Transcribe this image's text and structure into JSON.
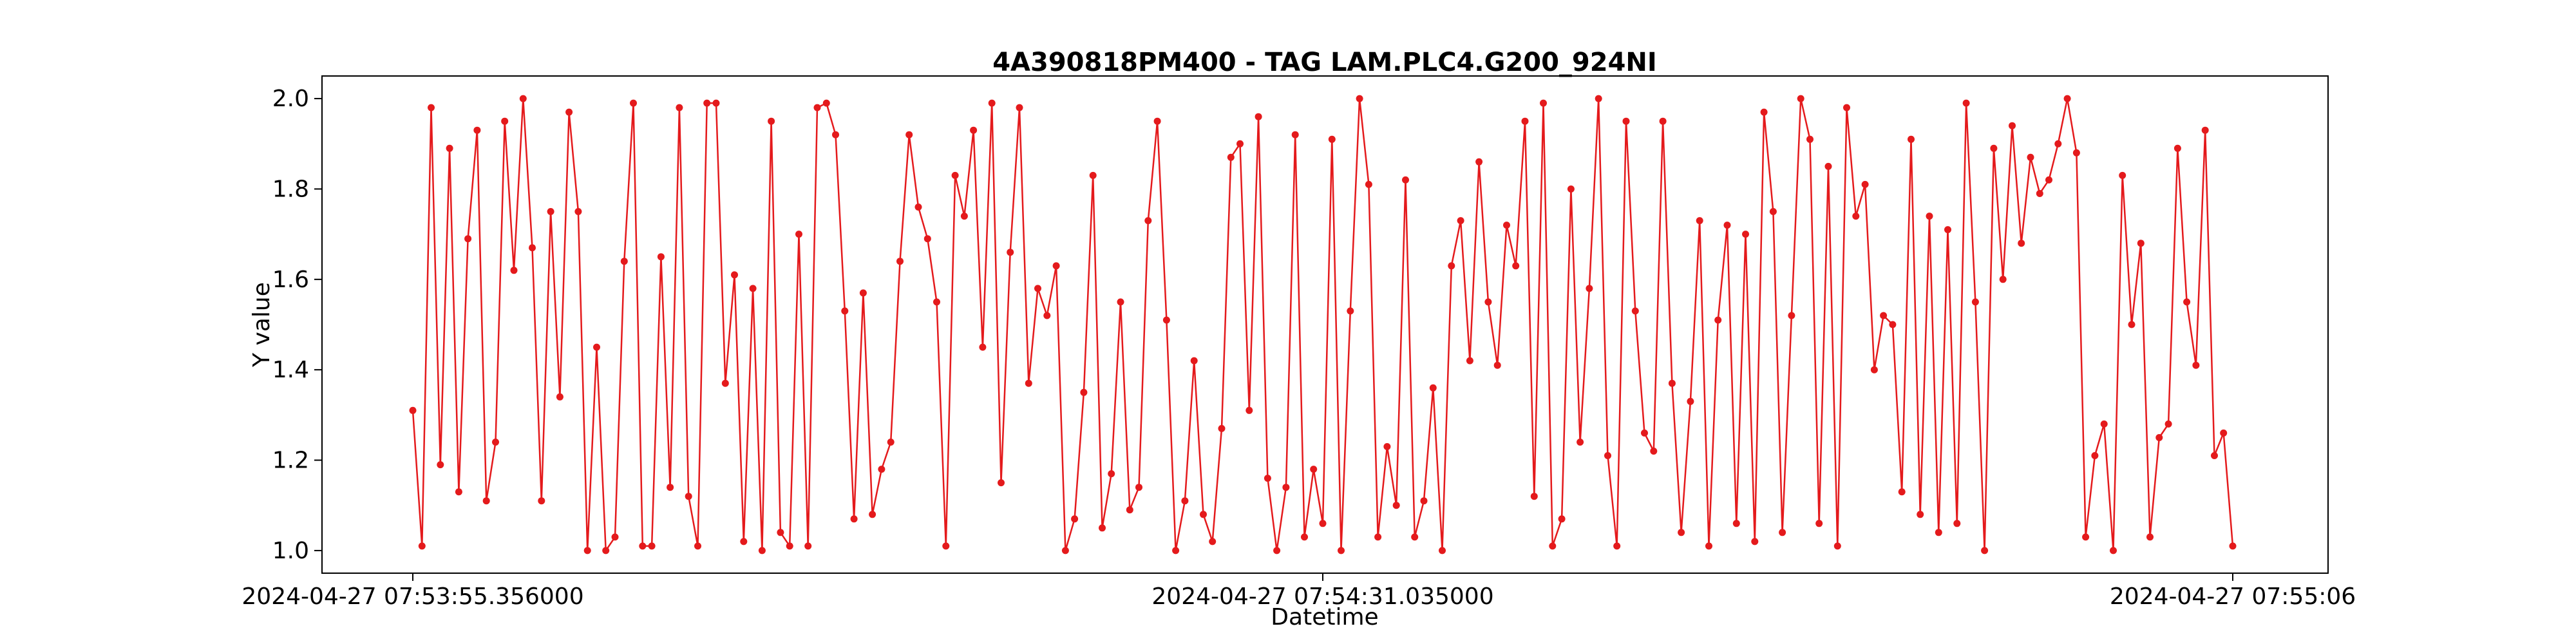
{
  "chart_data": {
    "type": "line",
    "title": "4A390818PM400 - TAG LAM.PLC4.G200_924NI",
    "xlabel": "Datetime",
    "ylabel": "Y value",
    "ylim": [
      0.95,
      2.05
    ],
    "y_ticks": [
      1.0,
      1.2,
      1.4,
      1.6,
      1.8,
      2.0
    ],
    "y_tick_labels": [
      "1.0",
      "1.2",
      "1.4",
      "1.6",
      "1.8",
      "2.0"
    ],
    "x_start": "2024-04-27 07:53:55.356000",
    "x_end": "2024-04-27 07:55:06",
    "x_tick_labels": [
      "2024-04-27 07:53:55.356000",
      "2024-04-27 07:54:31.035000",
      "2024-04-27 07:55:06"
    ],
    "grid": false,
    "legend": "none",
    "line_color": "#e41a1c",
    "marker": "circle",
    "series": [
      {
        "values": [
          1.31,
          1.01,
          1.98,
          1.19,
          1.89,
          1.13,
          1.69,
          1.93,
          1.11,
          1.24,
          1.95,
          1.62,
          2.0,
          1.67,
          1.11,
          1.75,
          1.34,
          1.97,
          1.75,
          1.0,
          1.45,
          1.0,
          1.03,
          1.64,
          1.99,
          1.01,
          1.01,
          1.65,
          1.14,
          1.98,
          1.12,
          1.01,
          1.99,
          1.99,
          1.37,
          1.61,
          1.02,
          1.58,
          1.0,
          1.95,
          1.04,
          1.01,
          1.7,
          1.01,
          1.98,
          1.99,
          1.92,
          1.53,
          1.07,
          1.57,
          1.08,
          1.18,
          1.24,
          1.64,
          1.92,
          1.76,
          1.69,
          1.55,
          1.01,
          1.83,
          1.74,
          1.93,
          1.45,
          1.99,
          1.15,
          1.66,
          1.98,
          1.37,
          1.58,
          1.52,
          1.63,
          1.0,
          1.07,
          1.35,
          1.83,
          1.05,
          1.17,
          1.55,
          1.09,
          1.14,
          1.73,
          1.95,
          1.51,
          1.0,
          1.11,
          1.42,
          1.08,
          1.02,
          1.27,
          1.87,
          1.9,
          1.31,
          1.96,
          1.16,
          1.0,
          1.14,
          1.92,
          1.03,
          1.18,
          1.06,
          1.91,
          1.0,
          1.53,
          2.0,
          1.81,
          1.03,
          1.23,
          1.1,
          1.82,
          1.03,
          1.11,
          1.36,
          1.0,
          1.63,
          1.73,
          1.42,
          1.86,
          1.55,
          1.41,
          1.72,
          1.63,
          1.95,
          1.12,
          1.99,
          1.01,
          1.07,
          1.8,
          1.24,
          1.58,
          2.0,
          1.21,
          1.01,
          1.95,
          1.53,
          1.26,
          1.22,
          1.95,
          1.37,
          1.04,
          1.33,
          1.73,
          1.01,
          1.51,
          1.72,
          1.06,
          1.7,
          1.02,
          1.97,
          1.75,
          1.04,
          1.52,
          2.0,
          1.91,
          1.06,
          1.85,
          1.01,
          1.98,
          1.74,
          1.81,
          1.4,
          1.52,
          1.5,
          1.13,
          1.91,
          1.08,
          1.74,
          1.04,
          1.71,
          1.06,
          1.99,
          1.55,
          1.0,
          1.89,
          1.6,
          1.94,
          1.68,
          1.87,
          1.79,
          1.82,
          1.9,
          2.0,
          1.88,
          1.03,
          1.21,
          1.28,
          1.0,
          1.83,
          1.5,
          1.68,
          1.03,
          1.25,
          1.28,
          1.89,
          1.55,
          1.41,
          1.93,
          1.21,
          1.26,
          1.01
        ]
      }
    ]
  }
}
